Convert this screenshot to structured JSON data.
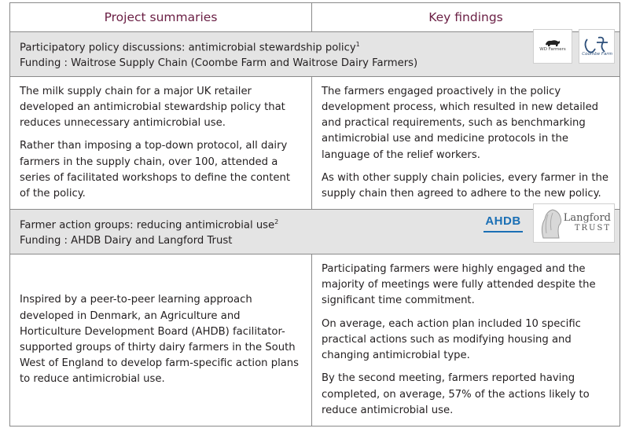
{
  "headers": {
    "project_summaries": "Project summaries",
    "key_findings": "Key findings"
  },
  "sections": [
    {
      "title": "Participatory policy discussions: antimicrobial stewardship policy",
      "title_sup": "1",
      "funding": "Funding : Waitrose Supply Chain (Coombe Farm and Waitrose Dairy Farmers)",
      "logos": [
        {
          "name": "wd-farmers-logo",
          "text": "WD Farmers"
        },
        {
          "name": "coombe-farm-logo",
          "text": "Coombe Farm"
        }
      ],
      "summary": [
        "The milk supply chain for a major UK retailer developed an antimicrobial stewardship policy that reduces unnecessary antimicrobial use.",
        "Rather than imposing a top-down protocol, all dairy farmers in the supply chain, over 100, attended a series of facilitated workshops to define the content of the policy."
      ],
      "findings": [
        "The farmers engaged proactively in the policy development process, which resulted in new detailed and practical requirements, such as benchmarking antimicrobial use and medicine protocols in the language of the relief workers.",
        "As with other supply chain policies, every farmer in the supply chain then agreed to adhere to the new policy."
      ]
    },
    {
      "title": "Farmer action groups: reducing antimicrobial use",
      "title_sup": "2",
      "funding": "Funding : AHDB Dairy and Langford Trust",
      "logos": [
        {
          "name": "ahdb-logo",
          "text": "AHDB"
        },
        {
          "name": "langford-trust-logo",
          "text": "Langford",
          "text2": "TRUST"
        }
      ],
      "summary": [
        "Inspired by a peer-to-peer learning approach developed in Denmark, an Agriculture and Horticulture Development Board (AHDB) facilitator-supported groups of thirty dairy farmers in the South West of England to develop farm-specific action plans to reduce antimicrobial use."
      ],
      "findings": [
        "Participating farmers were highly engaged and the majority of meetings were fully attended despite the significant time commitment.",
        "On average, each action plan included 10 specific practical actions such as modifying housing and changing antimicrobial type.",
        "By the second meeting, farmers reported having completed, on average, 57% of the actions likely to reduce antimicrobial use."
      ]
    }
  ]
}
